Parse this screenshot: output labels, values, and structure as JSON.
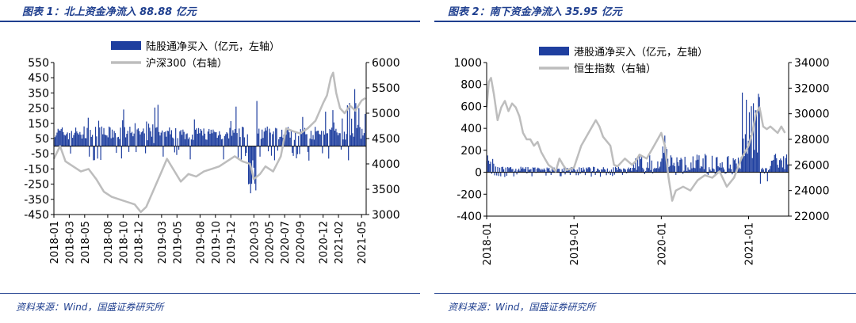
{
  "panels": [
    {
      "title": "图表 1：北上资金净流入 88.88 亿元",
      "source": "资料来源：Wind，国盛证券研究所"
    },
    {
      "title": "图表 2：南下资金净流入 35.95 亿元",
      "source": "资料来源：Wind，国盛证券研究所"
    }
  ],
  "colors": {
    "bar": "#1f3f9f",
    "line": "#bdbdbd",
    "accent": "#1f3f8f"
  },
  "chart_data": [
    {
      "type": "bar",
      "title": "北上资金净流入 88.88 亿元",
      "legend": [
        "陆股通净买入（亿元，左轴）",
        "沪深300（右轴）"
      ],
      "ylim": [
        -450,
        550
      ],
      "yticks": [
        550,
        450,
        350,
        250,
        150,
        50,
        -50,
        -150,
        -250,
        -350,
        -450
      ],
      "y2lim": [
        3000,
        6000
      ],
      "y2ticks": [
        6000,
        5500,
        5000,
        4500,
        4000,
        3500,
        3000
      ],
      "xlim": [
        0,
        40.6
      ],
      "xticks": [
        {
          "label": "2018-01",
          "x": 0
        },
        {
          "label": "2018-03",
          "x": 2
        },
        {
          "label": "2018-05",
          "x": 4
        },
        {
          "label": "2018-08",
          "x": 7
        },
        {
          "label": "2018-10",
          "x": 9
        },
        {
          "label": "2018-12",
          "x": 11
        },
        {
          "label": "2019-03",
          "x": 14
        },
        {
          "label": "2019-05",
          "x": 16
        },
        {
          "label": "2019-08",
          "x": 19
        },
        {
          "label": "2019-10",
          "x": 21
        },
        {
          "label": "2019-12",
          "x": 23
        },
        {
          "label": "2020-03",
          "x": 26
        },
        {
          "label": "2020-05",
          "x": 28
        },
        {
          "label": "2020-07",
          "x": 30
        },
        {
          "label": "2020-09",
          "x": 32
        },
        {
          "label": "2020-12",
          "x": 35
        },
        {
          "label": "2021-02",
          "x": 37
        },
        {
          "label": "2021-05",
          "x": 40
        }
      ],
      "series_bar_name": "陆股通净买入",
      "series_line_name": "沪深300",
      "line": [
        [
          0,
          4100
        ],
        [
          0.8,
          4350
        ],
        [
          1.5,
          4050
        ],
        [
          2.5,
          3950
        ],
        [
          3.5,
          3850
        ],
        [
          4.5,
          3900
        ],
        [
          5.5,
          3700
        ],
        [
          6.5,
          3450
        ],
        [
          7.5,
          3350
        ],
        [
          8.5,
          3300
        ],
        [
          9.5,
          3250
        ],
        [
          10.5,
          3200
        ],
        [
          11.3,
          3050
        ],
        [
          12,
          3150
        ],
        [
          13,
          3500
        ],
        [
          14,
          3850
        ],
        [
          14.7,
          4100
        ],
        [
          15.5,
          3900
        ],
        [
          16.5,
          3650
        ],
        [
          17.5,
          3800
        ],
        [
          18.5,
          3750
        ],
        [
          19.5,
          3850
        ],
        [
          20.5,
          3900
        ],
        [
          21.5,
          3950
        ],
        [
          22.5,
          4050
        ],
        [
          23.5,
          4150
        ],
        [
          24.5,
          4050
        ],
        [
          25.5,
          4000
        ],
        [
          26,
          3700
        ],
        [
          26.8,
          3800
        ],
        [
          27.5,
          3950
        ],
        [
          28.5,
          3850
        ],
        [
          29.5,
          4150
        ],
        [
          30.2,
          4700
        ],
        [
          31,
          4650
        ],
        [
          32,
          4600
        ],
        [
          33,
          4700
        ],
        [
          34,
          4850
        ],
        [
          35,
          5200
        ],
        [
          35.5,
          5350
        ],
        [
          36,
          5700
        ],
        [
          36.3,
          5800
        ],
        [
          36.7,
          5400
        ],
        [
          37.2,
          5100
        ],
        [
          37.8,
          5000
        ],
        [
          38.5,
          5150
        ],
        [
          39.2,
          5050
        ],
        [
          40,
          5250
        ],
        [
          40.5,
          5300
        ]
      ],
      "bars_seed": 7
    },
    {
      "type": "bar",
      "title": "南下资金净流入 35.95 亿元",
      "legend": [
        "港股通净买入（亿元，左轴）",
        "恒生指数（右轴）"
      ],
      "ylim": [
        -400,
        1000
      ],
      "yticks": [
        1000,
        800,
        600,
        400,
        200,
        0,
        -200,
        -400
      ],
      "y2lim": [
        22000,
        34000
      ],
      "y2ticks": [
        34000,
        32000,
        30000,
        28000,
        26000,
        24000,
        22000
      ],
      "xlim": [
        0,
        41.5
      ],
      "xticks": [
        {
          "label": "2018-01",
          "x": 0
        },
        {
          "label": "2019-01",
          "x": 12
        },
        {
          "label": "2020-01",
          "x": 24
        },
        {
          "label": "2021-01",
          "x": 36
        }
      ],
      "series_bar_name": "港股通净买入",
      "series_line_name": "恒生指数",
      "line": [
        [
          0,
          30500
        ],
        [
          0.3,
          32500
        ],
        [
          0.6,
          32800
        ],
        [
          1,
          31500
        ],
        [
          1.5,
          29500
        ],
        [
          2,
          30500
        ],
        [
          2.5,
          31000
        ],
        [
          3,
          30200
        ],
        [
          3.5,
          30800
        ],
        [
          4,
          30500
        ],
        [
          4.5,
          29800
        ],
        [
          5,
          28500
        ],
        [
          5.5,
          28000
        ],
        [
          6,
          28000
        ],
        [
          6.5,
          27500
        ],
        [
          7,
          27800
        ],
        [
          7.5,
          27000
        ],
        [
          8,
          26500
        ],
        [
          8.5,
          26000
        ],
        [
          9,
          25800
        ],
        [
          9.5,
          25500
        ],
        [
          10,
          26500
        ],
        [
          10.5,
          26000
        ],
        [
          11,
          25600
        ],
        [
          12,
          25800
        ],
        [
          13,
          27500
        ],
        [
          14,
          28500
        ],
        [
          15,
          29500
        ],
        [
          15.5,
          29000
        ],
        [
          16,
          28200
        ],
        [
          17,
          27500
        ],
        [
          17.5,
          26000
        ],
        [
          18,
          25900
        ],
        [
          19,
          26500
        ],
        [
          20,
          26000
        ],
        [
          20.5,
          26300
        ],
        [
          21,
          26800
        ],
        [
          22,
          26500
        ],
        [
          23,
          27500
        ],
        [
          24,
          28500
        ],
        [
          24.5,
          27500
        ],
        [
          25,
          25000
        ],
        [
          25.5,
          23200
        ],
        [
          26,
          24000
        ],
        [
          27,
          24300
        ],
        [
          28,
          24000
        ],
        [
          29,
          24800
        ],
        [
          30,
          25200
        ],
        [
          31,
          25000
        ],
        [
          32,
          25500
        ],
        [
          33,
          24300
        ],
        [
          34,
          25000
        ],
        [
          35,
          26500
        ],
        [
          36,
          27500
        ],
        [
          36.5,
          28500
        ],
        [
          37,
          30000
        ],
        [
          37.5,
          30500
        ],
        [
          38,
          29000
        ],
        [
          38.5,
          28800
        ],
        [
          39,
          29000
        ],
        [
          40,
          28500
        ],
        [
          40.5,
          29000
        ],
        [
          41,
          28500
        ]
      ],
      "bars_seed": 11
    }
  ]
}
